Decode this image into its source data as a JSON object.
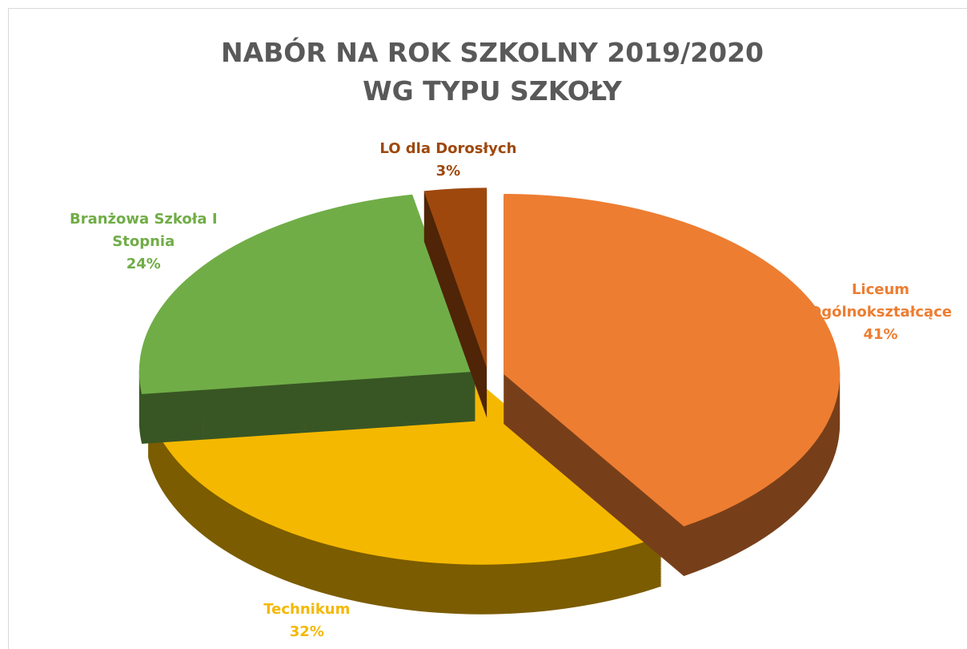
{
  "chart_data": {
    "type": "pie",
    "title": [
      "NABÓR NA ROK SZKOLNY 2019/2020",
      "WG TYPU SZKOŁY"
    ],
    "categories": [
      "Liceum Ogólnokształcące",
      "Technikum",
      "Branżowa Szkoła I Stopnia",
      "LO dla Dorosłych"
    ],
    "values": [
      41,
      32,
      24,
      3
    ],
    "value_labels": [
      "41%",
      "32%",
      "24%",
      "3%"
    ],
    "colors": [
      "#ed7d31",
      "#f5b800",
      "#70ad47",
      "#9e480e"
    ]
  }
}
